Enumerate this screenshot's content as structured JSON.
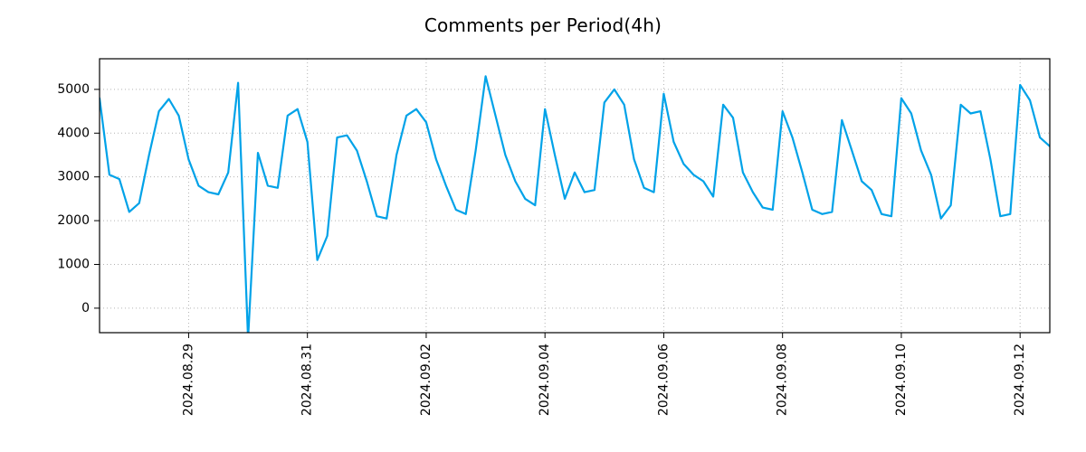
{
  "chart_data": {
    "type": "line",
    "title": "Comments per Period(4h)",
    "xlabel": "",
    "ylabel": "",
    "grid": true,
    "grid_style": "dotted",
    "legend_position": "none",
    "line_color": "#00A2E8",
    "grid_color": "#b3b3b3",
    "frame_color": "#000000",
    "ylim": [
      -560,
      5700
    ],
    "y_ticks": [
      0,
      1000,
      2000,
      3000,
      4000,
      5000
    ],
    "x_tick_indices": [
      9,
      21,
      33,
      45,
      57,
      69,
      81,
      93
    ],
    "x_tick_labels": [
      "2024.08.29",
      "2024.08.31",
      "2024.09.02",
      "2024.09.04",
      "2024.09.06",
      "2024.09.08",
      "2024.09.10",
      "2024.09.12"
    ],
    "points_per_day": 6,
    "values": [
      4800,
      3050,
      2950,
      2200,
      2400,
      3500,
      4500,
      4780,
      4400,
      3400,
      2800,
      2650,
      2600,
      3100,
      5150,
      -700,
      3550,
      2800,
      2750,
      4400,
      4550,
      3800,
      1100,
      1650,
      3900,
      3950,
      3600,
      2900,
      2100,
      2050,
      3500,
      4400,
      4550,
      4250,
      3400,
      2800,
      2250,
      2150,
      3600,
      5300,
      4400,
      3500,
      2900,
      2500,
      2350,
      4550,
      3500,
      2500,
      3100,
      2650,
      2700,
      4700,
      5000,
      4650,
      3400,
      2750,
      2650,
      4900,
      3800,
      3300,
      3050,
      2900,
      2550,
      4650,
      4350,
      3100,
      2650,
      2300,
      2250,
      4500,
      3900,
      3100,
      2250,
      2150,
      2200,
      4300,
      3600,
      2900,
      2700,
      2150,
      2100,
      4800,
      4450,
      3600,
      3050,
      2050,
      2350,
      4650,
      4450,
      4500,
      3400,
      2100,
      2150,
      5100,
      4750,
      3900,
      3700
    ]
  }
}
